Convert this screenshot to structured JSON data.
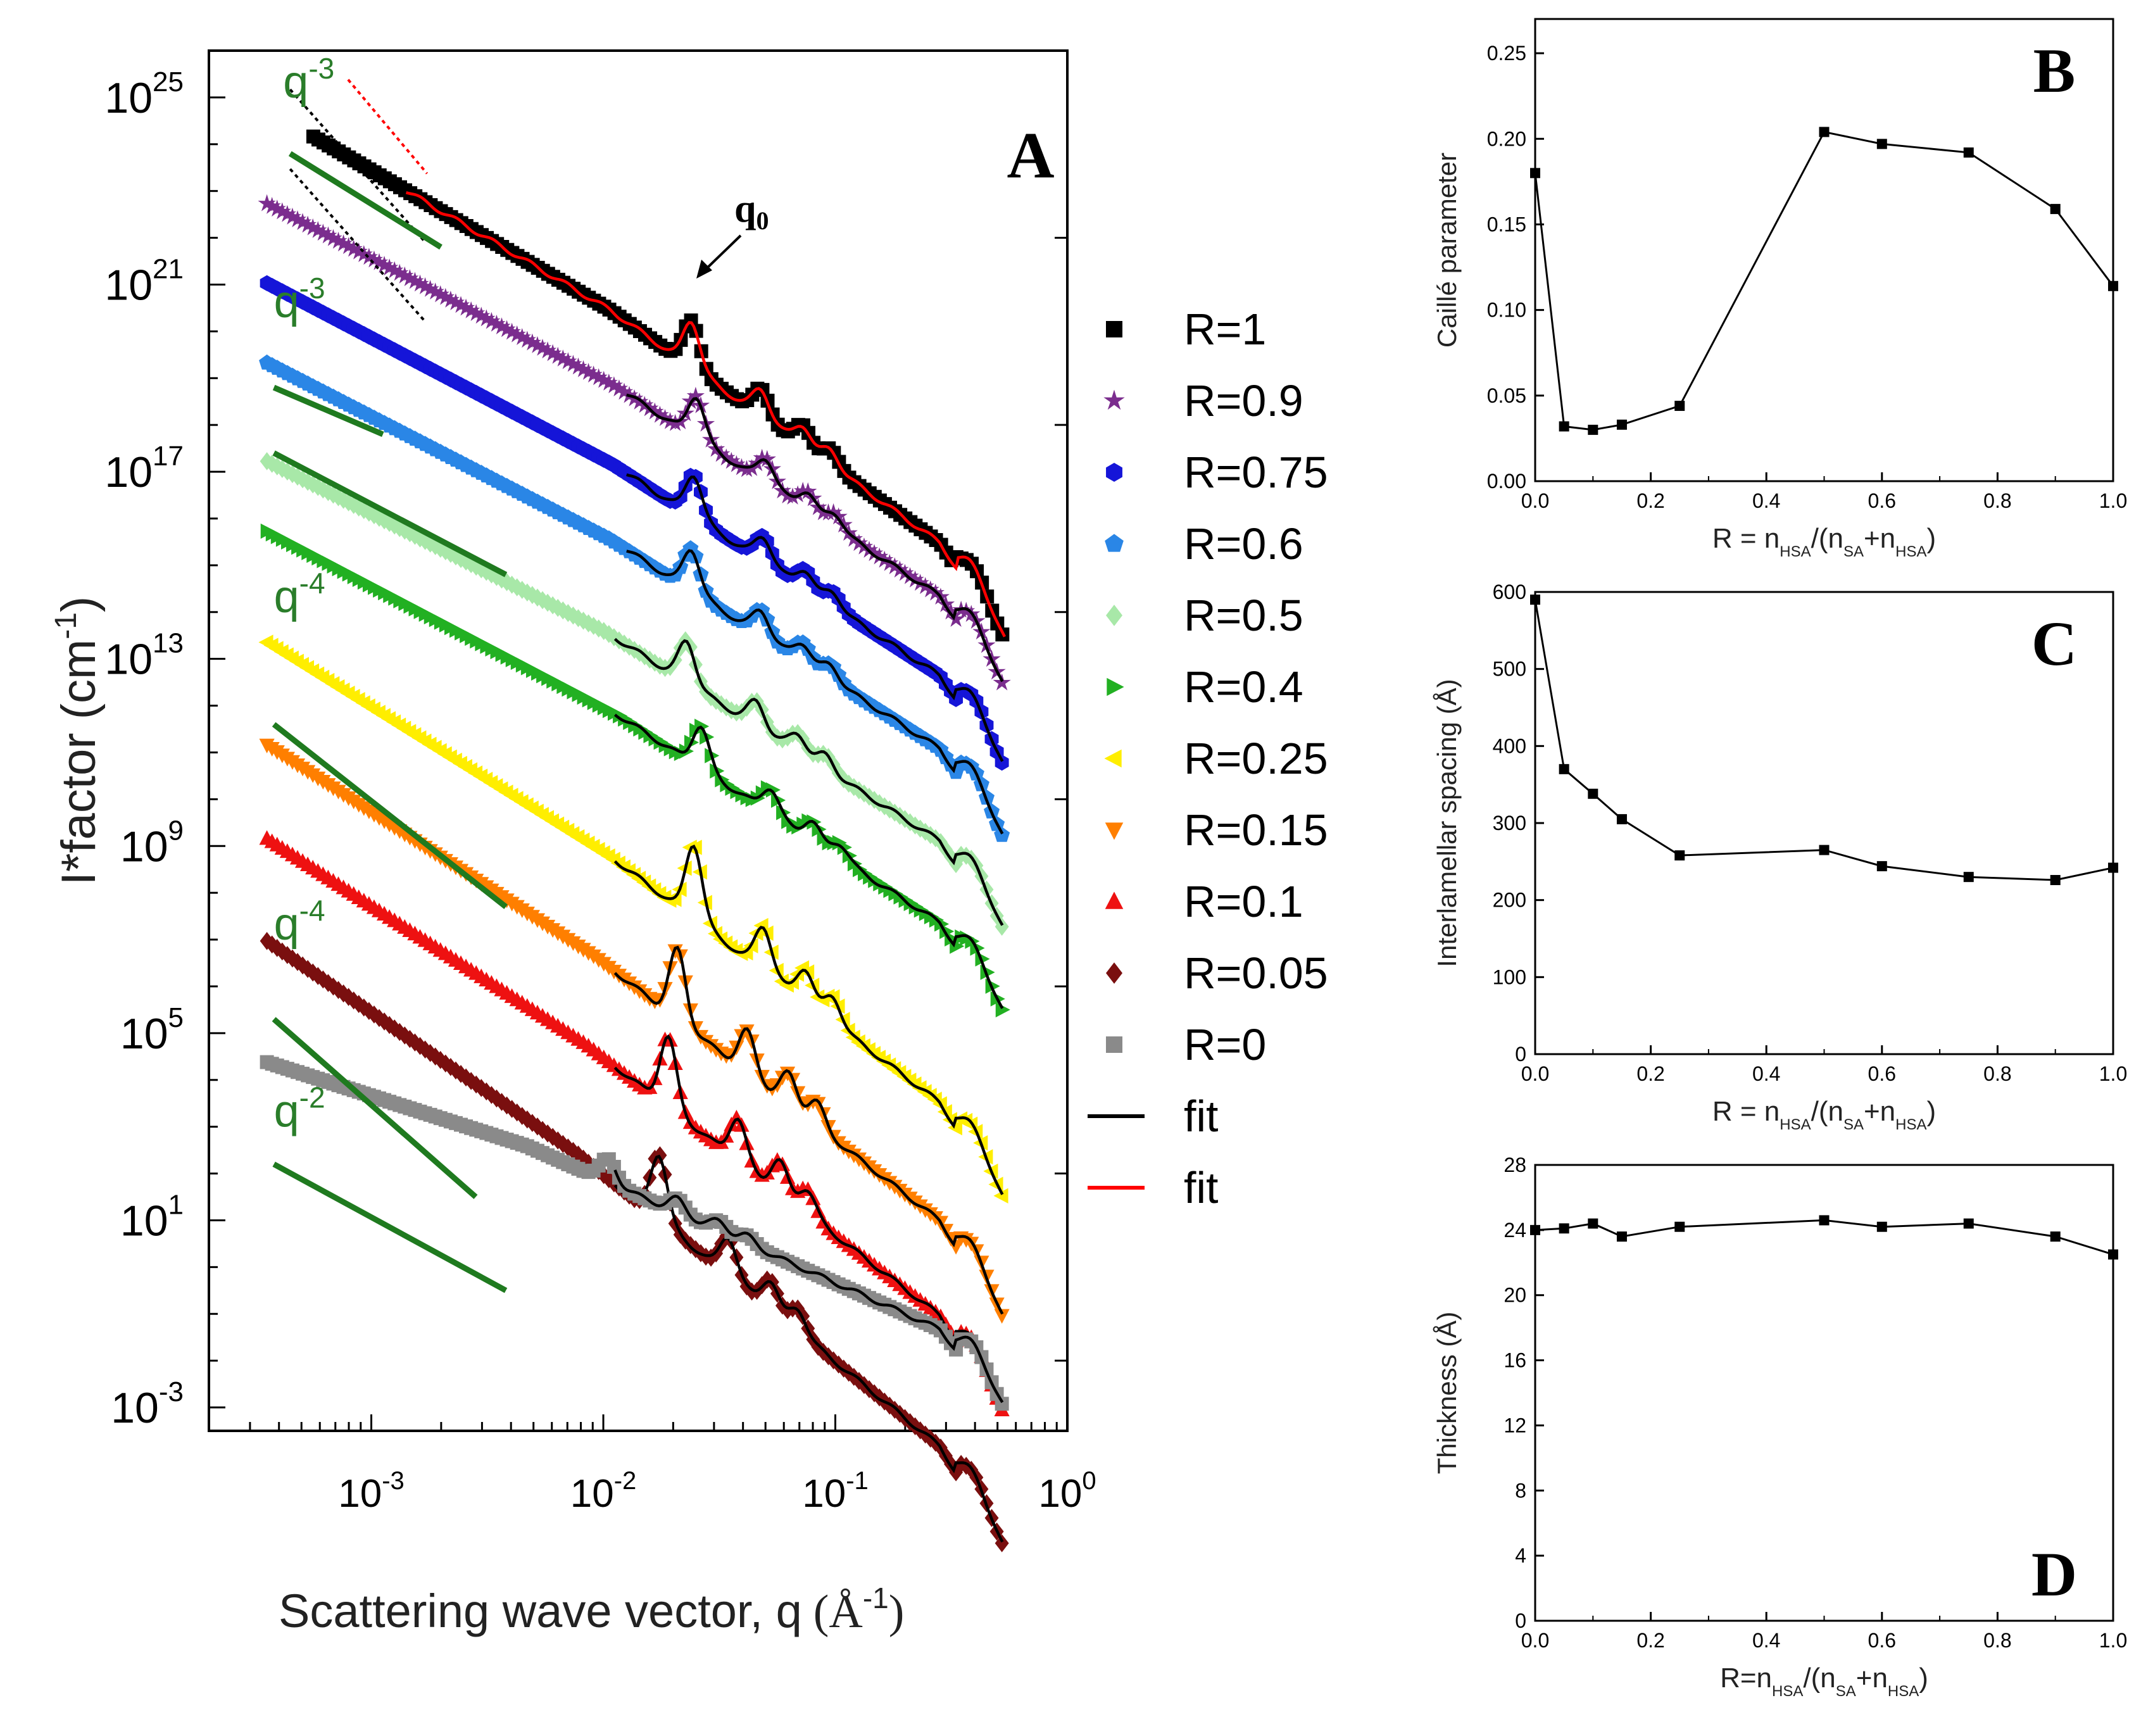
{
  "chart_data": [
    {
      "panel": "A",
      "type": "scatter",
      "xscale": "log",
      "yscale": "log",
      "xlabel": "Scattering wave vector, q",
      "xlabel_unit": "(Å",
      "xlabel_unit_exp": "-1",
      "xlabel_unit_close": ")",
      "ylabel": "I*factor (cm",
      "ylabel_exp": "-1",
      "ylabel_close": ")",
      "xlim_log10": [
        -3.7,
        0.0
      ],
      "ylim_log10": [
        -3.5,
        26.0
      ],
      "x_ticks": [
        {
          "base": "10",
          "exp": "-3",
          "v": -3
        },
        {
          "base": "10",
          "exp": "-2",
          "v": -2
        },
        {
          "base": "10",
          "exp": "-1",
          "v": -1
        },
        {
          "base": "10",
          "exp": "0",
          "v": 0
        }
      ],
      "y_ticks": [
        {
          "base": "10",
          "exp": "25",
          "v": 25
        },
        {
          "base": "10",
          "exp": "21",
          "v": 21
        },
        {
          "base": "10",
          "exp": "17",
          "v": 17
        },
        {
          "base": "10",
          "exp": "13",
          "v": 13
        },
        {
          "base": "10",
          "exp": "9",
          "v": 9
        },
        {
          "base": "10",
          "exp": "5",
          "v": 5
        },
        {
          "base": "10",
          "exp": "1",
          "v": 1
        },
        {
          "base": "10",
          "exp": "-3",
          "v": -3
        }
      ],
      "panel_label": "A",
      "peak_label": {
        "text": "q",
        "sub": "0"
      },
      "power_law_labels": [
        {
          "base": "q",
          "exp": "-3",
          "color": "#2a7d2a",
          "logq": -3.38,
          "logI": 25.0
        },
        {
          "base": "q",
          "exp": "-3",
          "color": "#2a7d2a",
          "logq": -3.42,
          "logI": 20.3
        },
        {
          "base": "q",
          "exp": "-4",
          "color": "#2a7d2a",
          "logq": -3.42,
          "logI": 14.0
        },
        {
          "base": "q",
          "exp": "-4",
          "color": "#2a7d2a",
          "logq": -3.42,
          "logI": 7.0
        },
        {
          "base": "q",
          "exp": "-2",
          "color": "#2a7d2a",
          "logq": -3.42,
          "logI": 3.0
        }
      ],
      "series": [
        {
          "name": "R=1",
          "color": "#000000",
          "marker": "square",
          "y0": 24.6,
          "slope": -2.9,
          "peak": -1.62,
          "amp": 1.0,
          "fitcolor": "#ff0000",
          "qstart": -3.25
        },
        {
          "name": "R=0.9",
          "color": "#7b2d8e",
          "marker": "star",
          "y0": 22.6,
          "slope": -2.6,
          "peak": -1.6,
          "amp": 0.9,
          "fitcolor": "#000000",
          "qstart": -3.45
        },
        {
          "name": "R=0.75",
          "color": "#1515d8",
          "marker": "hexagon",
          "y0": 20.9,
          "slope": -2.6,
          "peak": -1.61,
          "amp": 0.9,
          "fitcolor": "#000000",
          "qstart": -3.45
        },
        {
          "name": "R=0.6",
          "color": "#2a86e6",
          "marker": "pentagon",
          "y0": 19.2,
          "slope": -2.55,
          "peak": -1.62,
          "amp": 0.9,
          "fitcolor": "#000000",
          "qstart": -3.45
        },
        {
          "name": "R=0.5",
          "color": "#a8e8a8",
          "marker": "diamond",
          "y0": 17.1,
          "slope": -2.5,
          "peak": -1.64,
          "amp": 0.9,
          "fitcolor": "#000000",
          "qstart": -3.45
        },
        {
          "name": "R=0.4",
          "color": "#22b022",
          "marker": "triangle-right",
          "y0": 15.6,
          "slope": -2.6,
          "peak": -1.58,
          "amp": 0.9,
          "fitcolor": "#000000",
          "qstart": -3.45
        },
        {
          "name": "R=0.25",
          "color": "#ffee00",
          "marker": "triangle-left",
          "y0": 13.2,
          "slope": -3.1,
          "peak": -1.61,
          "amp": 1.6,
          "fitcolor": "#000000",
          "qstart": -3.45
        },
        {
          "name": "R=0.15",
          "color": "#ff7f00",
          "marker": "triangle-down",
          "y0": 11.0,
          "slope": -3.2,
          "peak": -1.68,
          "amp": 1.5,
          "fitcolor": "#000000",
          "qstart": -3.45
        },
        {
          "name": "R=0.1",
          "color": "#ee1111",
          "marker": "triangle-up",
          "y0": 9.0,
          "slope": -3.2,
          "peak": -1.72,
          "amp": 1.5,
          "fitcolor": "#000000",
          "qstart": -3.45
        },
        {
          "name": "R=0.05",
          "color": "#7a0f0f",
          "marker": "diamond",
          "y0": 6.8,
          "slope": -3.4,
          "peak": -1.76,
          "amp": 1.4,
          "fitcolor": "#000000",
          "qstart": -3.45
        },
        {
          "name": "R=0",
          "color": "#8a8a8a",
          "marker": "square",
          "y0": 4.3,
          "slope": -1.6,
          "peak": -1.98,
          "amp": 0.5,
          "fitcolor": "#000000",
          "qstart": -3.45
        }
      ],
      "legend_fits": [
        {
          "label": "fit",
          "color": "#000000"
        },
        {
          "label": "fit",
          "color": "#ff0000"
        }
      ]
    },
    {
      "panel": "B",
      "type": "line",
      "panel_label": "B",
      "ylabel": "Caillé parameter",
      "xlabel": "R = n",
      "xlabel_parts": [
        "R = n",
        "HSA",
        "/(n",
        "SA",
        "+n",
        "HSA",
        ")"
      ],
      "x": [
        0,
        0.05,
        0.1,
        0.15,
        0.25,
        0.5,
        0.6,
        0.75,
        0.9,
        1.0
      ],
      "y": [
        0.18,
        0.032,
        0.03,
        0.033,
        0.044,
        0.204,
        0.197,
        0.192,
        0.159,
        0.114
      ],
      "xlim": [
        0,
        1
      ],
      "ylim": [
        0,
        0.27
      ],
      "x_ticks": [
        "0.0",
        "0.2",
        "0.4",
        "0.6",
        "0.8",
        "1.0"
      ],
      "y_ticks": [
        "0.00",
        "0.05",
        "0.10",
        "0.15",
        "0.20",
        "0.25"
      ]
    },
    {
      "panel": "C",
      "type": "line",
      "panel_label": "C",
      "ylabel": "Interlamellar spacing (Å)",
      "xlabel": "R = n",
      "xlabel_parts": [
        "R = n",
        "HSA",
        "/(n",
        "SA",
        "+n",
        "HSA",
        ")"
      ],
      "x": [
        0,
        0.05,
        0.1,
        0.15,
        0.25,
        0.5,
        0.6,
        0.75,
        0.9,
        1.0
      ],
      "y": [
        590,
        370,
        338,
        305,
        258,
        265,
        244,
        230,
        226,
        242
      ],
      "xlim": [
        0,
        1
      ],
      "ylim": [
        0,
        600
      ],
      "x_ticks": [
        "0.0",
        "0.2",
        "0.4",
        "0.6",
        "0.8",
        "1.0"
      ],
      "y_ticks": [
        "0",
        "100",
        "200",
        "300",
        "400",
        "500",
        "600"
      ]
    },
    {
      "panel": "D",
      "type": "line",
      "panel_label": "D",
      "ylabel": "Thickness (Å)",
      "xlabel": "R=n",
      "xlabel_parts": [
        "R=n",
        "HSA",
        "/(n",
        "SA",
        "+n",
        "HSA",
        ")"
      ],
      "x": [
        0,
        0.05,
        0.1,
        0.15,
        0.25,
        0.5,
        0.6,
        0.75,
        0.9,
        1.0
      ],
      "y": [
        24.0,
        24.1,
        24.4,
        23.6,
        24.2,
        24.6,
        24.2,
        24.4,
        23.6,
        22.5
      ],
      "xlim": [
        0,
        1
      ],
      "ylim": [
        0,
        28
      ],
      "x_ticks": [
        "0.0",
        "0.2",
        "0.4",
        "0.6",
        "0.8",
        "1.0"
      ],
      "y_ticks": [
        "0",
        "4",
        "8",
        "12",
        "16",
        "20",
        "24",
        "28"
      ]
    }
  ]
}
